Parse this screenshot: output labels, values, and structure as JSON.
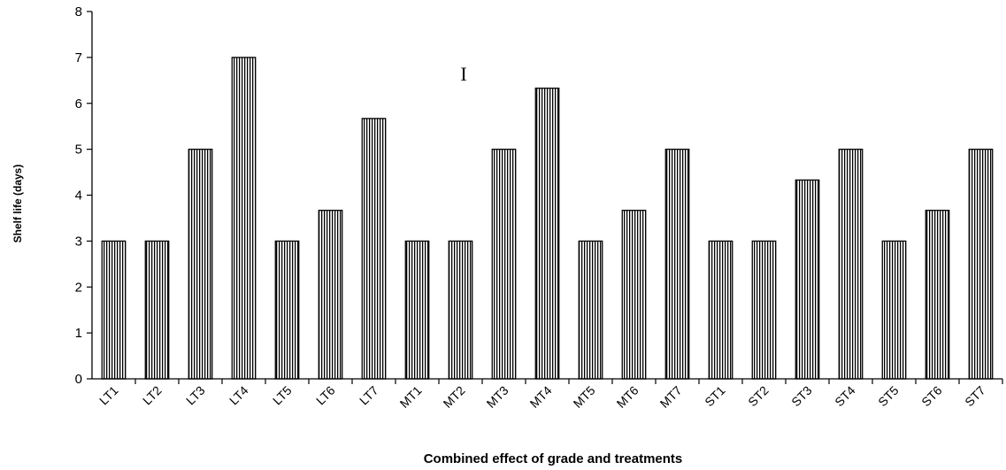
{
  "chart_data": {
    "type": "bar",
    "title": "",
    "xlabel": "Combined effect of grade and treatments",
    "ylabel": "Shelf life (days)",
    "categories": [
      "LT1",
      "LT2",
      "LT3",
      "LT4",
      "LT5",
      "LT6",
      "LT7",
      "MT1",
      "MT2",
      "MT3",
      "MT4",
      "MT5",
      "MT6",
      "MT7",
      "ST1",
      "ST2",
      "ST3",
      "ST4",
      "ST5",
      "ST6",
      "ST7"
    ],
    "values": [
      3,
      3,
      5,
      7,
      3,
      3.67,
      5.67,
      3,
      3,
      5,
      6.33,
      3,
      3.67,
      5,
      3,
      3,
      4.33,
      5,
      3,
      3.67,
      5
    ],
    "ylim": [
      0,
      8
    ],
    "yticks": [
      0,
      1,
      2,
      3,
      4,
      5,
      6,
      7,
      8
    ],
    "grid": false,
    "legend": "none",
    "error_bar_marker": "I",
    "bar_fill": "vertical-stripes",
    "colors": {
      "bar_stroke": "#000000",
      "stripe": "#000000",
      "background": "#ffffff"
    }
  }
}
